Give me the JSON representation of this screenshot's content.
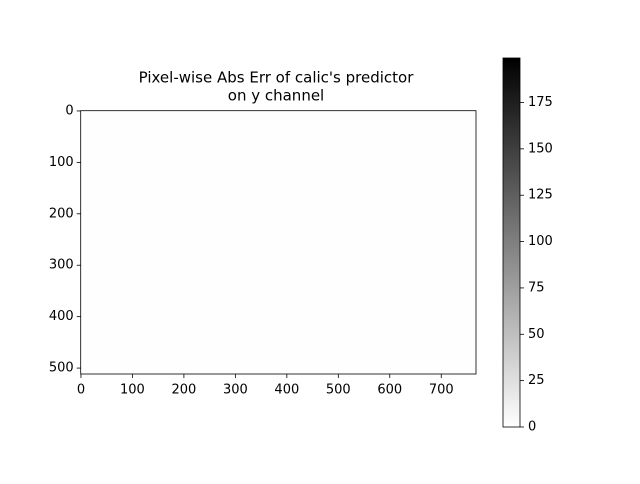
{
  "chart_data": {
    "type": "image",
    "title": [
      "Pixel-wise Abs Err of calic's predictor",
      "on y channel"
    ],
    "xlim": [
      -0.5,
      767.5
    ],
    "xticks": [
      0,
      100,
      200,
      300,
      400,
      500,
      600,
      700
    ],
    "ylim": [
      -0.5,
      511.5
    ],
    "y_inverted": true,
    "yticks": [
      0,
      100,
      200,
      300,
      400,
      500
    ],
    "colormap": "gray_r",
    "colorbar": {
      "clim": [
        0,
        199
      ],
      "ticks": [
        0,
        25,
        50,
        75,
        100,
        125,
        150,
        175
      ]
    }
  }
}
